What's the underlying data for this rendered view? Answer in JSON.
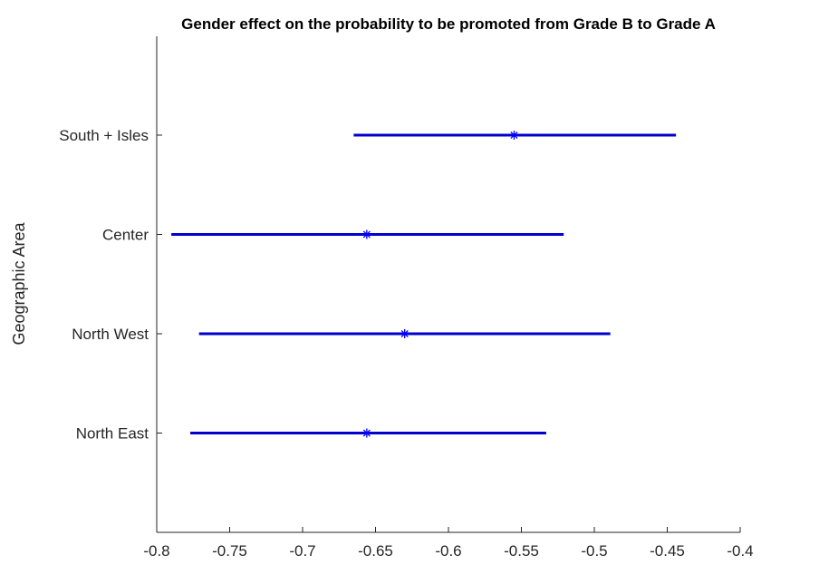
{
  "chart_data": {
    "type": "errorbar",
    "title": "Gender effect on the probability to be promoted from Grade B to Grade A",
    "xlabel": "",
    "ylabel": "Geographic Area",
    "xlim": [
      -0.8,
      -0.4
    ],
    "xticks": [
      "-0.8",
      "-0.75",
      "-0.7",
      "-0.65",
      "-0.6",
      "-0.55",
      "-0.5",
      "-0.45",
      "-0.4"
    ],
    "categories": [
      "North East",
      "North West",
      "Center",
      "South + Isles"
    ],
    "points": [
      {
        "category": "North East",
        "estimate": -0.656,
        "lower": -0.777,
        "upper": -0.533
      },
      {
        "category": "North West",
        "estimate": -0.63,
        "lower": -0.771,
        "upper": -0.489
      },
      {
        "category": "Center",
        "estimate": -0.656,
        "lower": -0.79,
        "upper": -0.521
      },
      {
        "category": "South + Isles",
        "estimate": -0.555,
        "lower": -0.665,
        "upper": -0.444
      }
    ],
    "grid": false,
    "legend": "none",
    "colors": {
      "series": "#0000cc",
      "marker": "#0000ff",
      "axis": "#262626"
    }
  }
}
